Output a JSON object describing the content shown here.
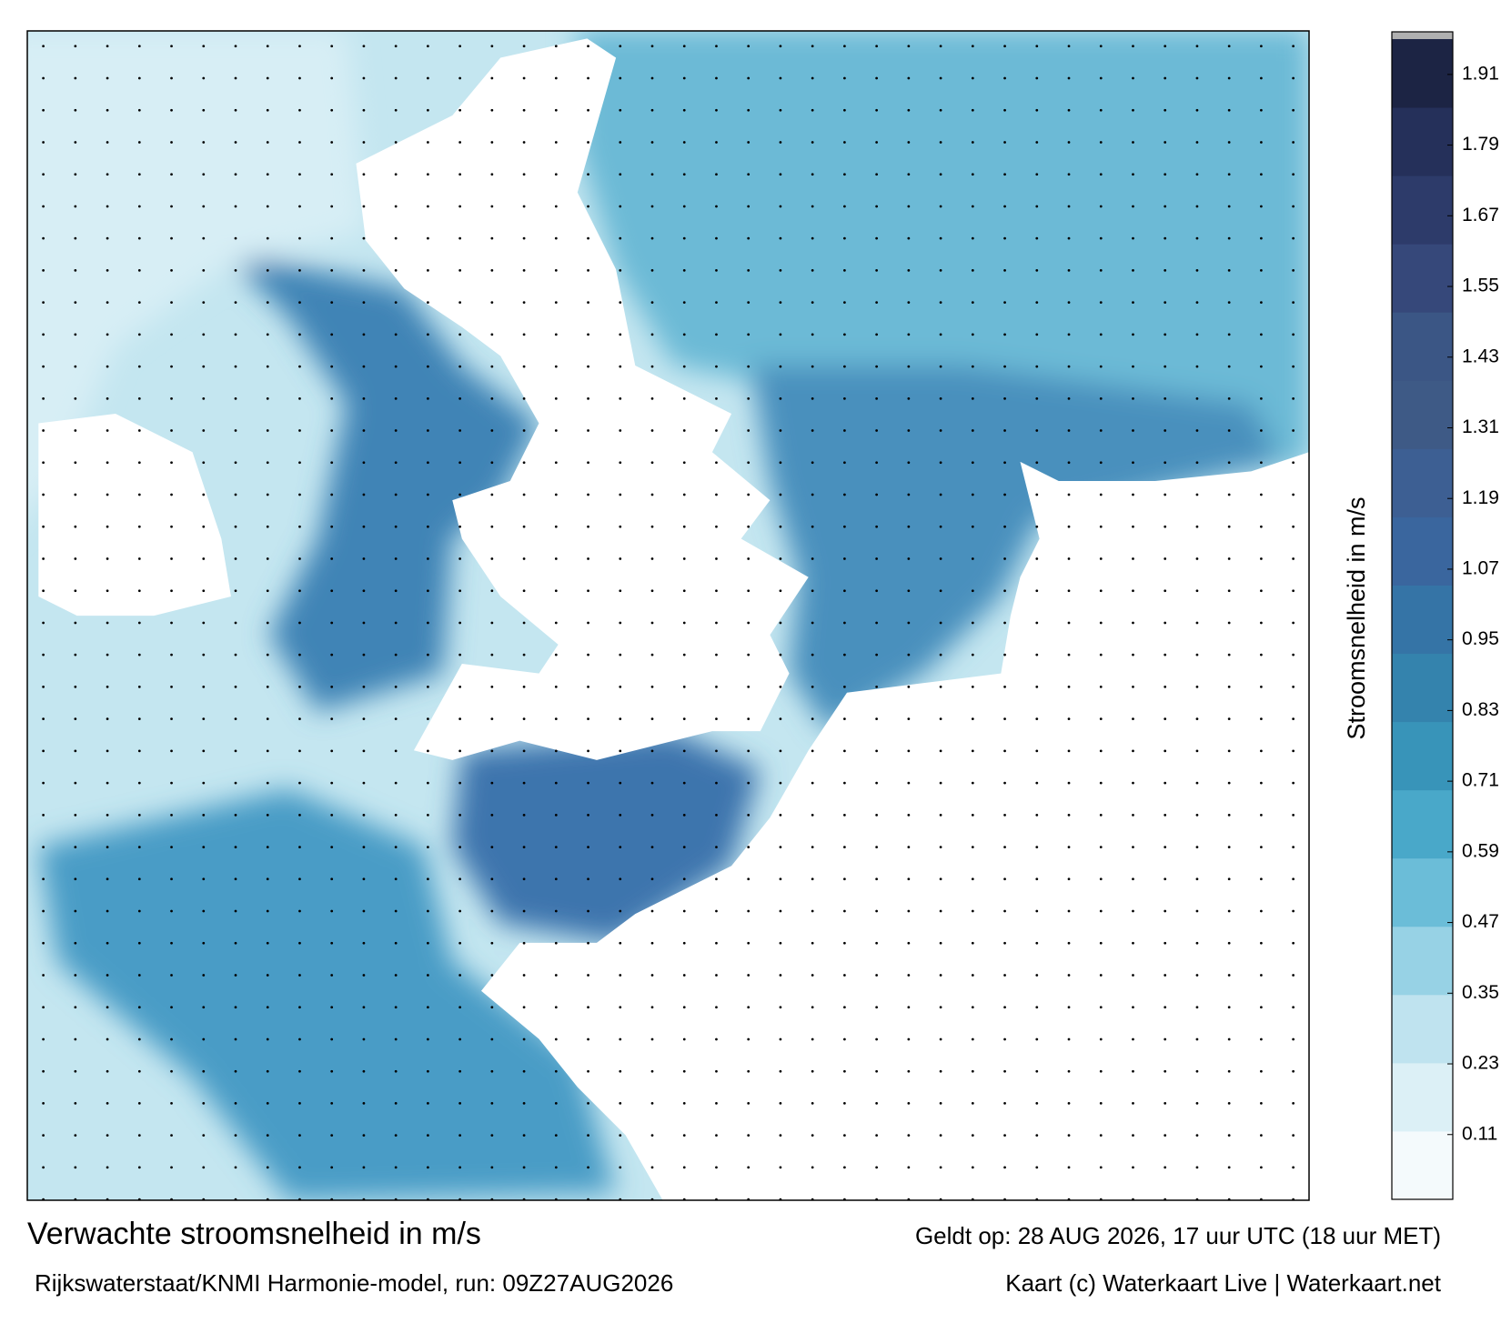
{
  "title": "Verwachte stroomsnelheid in m/s",
  "subtitle": "Rijkswaterstaat/KNMI Harmonie-model, run: 09Z27AUG2026",
  "valid_time": "Geldt op: 28 AUG 2026, 17 uur UTC (18 uur MET)",
  "credit": "Kaart (c) Waterkaart Live | Waterkaart.net",
  "colorbar": {
    "label": "Stroomsnelheid in m/s",
    "lim": [
      0,
      1.97
    ],
    "ticks": [
      0.11,
      0.23,
      0.35,
      0.47,
      0.59,
      0.71,
      0.83,
      0.95,
      1.07,
      1.19,
      1.31,
      1.43,
      1.55,
      1.67,
      1.79,
      1.91
    ],
    "colors": [
      "#f4fafc",
      "#dcf0f6",
      "#bfe3ef",
      "#97d2e5",
      "#6bbdd8",
      "#49a8c9",
      "#3894b9",
      "#3483ad",
      "#3574a6",
      "#3a669e",
      "#3d5f93",
      "#3e5a86",
      "#3b5685",
      "#36487a",
      "#2d3b6a",
      "#25305a",
      "#1c2444"
    ]
  }
}
